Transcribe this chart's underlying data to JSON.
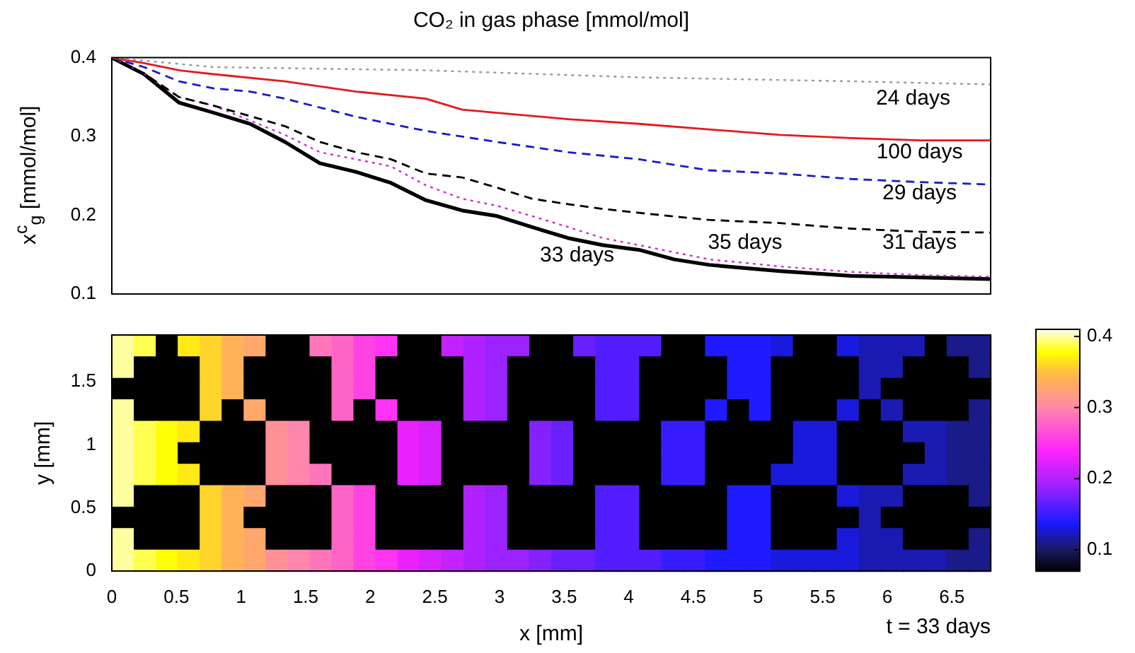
{
  "chart_data": [
    {
      "type": "line",
      "title": "CO₂ in gas phase [mmol/mol]",
      "ylabel": "x$^{c}$$_{g}$ [mmol/mol]",
      "xlim": [
        0,
        6.8
      ],
      "xticks": [
        0,
        0.5,
        1,
        1.5,
        2,
        2.5,
        3,
        3.5,
        4,
        4.5,
        5,
        5.5,
        6,
        6.5
      ],
      "ylim": [
        0.1,
        0.4
      ],
      "yticks": [
        0.1,
        0.2,
        0.3,
        0.4
      ],
      "tick_labels": "y",
      "grid": false,
      "legend": false,
      "series": [
        {
          "name": "24 days",
          "color": "#999999",
          "line_style": "dotted",
          "x": [
            0,
            0.79,
            2.43,
            4.08,
            5.72,
            6.8
          ],
          "values": [
            0.4,
            0.388,
            0.384,
            0.375,
            0.37,
            0.366
          ]
        },
        {
          "name": "100 days",
          "color": "#e41a1c",
          "line_style": "solid",
          "x": [
            0,
            0.25,
            0.52,
            0.79,
            1.34,
            1.89,
            2.43,
            2.71,
            2.98,
            3.53,
            4.08,
            4.62,
            5.17,
            5.72,
            6.26,
            6.8
          ],
          "values": [
            0.4,
            0.393,
            0.384,
            0.379,
            0.37,
            0.357,
            0.348,
            0.334,
            0.33,
            0.322,
            0.316,
            0.309,
            0.302,
            0.298,
            0.295,
            0.295
          ]
        },
        {
          "name": "29 days",
          "color": "#1a1acc",
          "line_style": "dashed",
          "x": [
            0,
            0.25,
            0.52,
            0.79,
            1.07,
            1.34,
            1.89,
            2.43,
            2.98,
            3.53,
            4.08,
            4.62,
            5.17,
            5.72,
            6.26,
            6.8
          ],
          "values": [
            0.4,
            0.388,
            0.37,
            0.361,
            0.357,
            0.348,
            0.325,
            0.307,
            0.293,
            0.28,
            0.271,
            0.257,
            0.253,
            0.246,
            0.242,
            0.239
          ]
        },
        {
          "name": "31 days",
          "color": "#000000",
          "line_style": "dashed",
          "x": [
            0,
            0.25,
            0.52,
            0.79,
            1.34,
            1.61,
            1.89,
            2.16,
            2.43,
            2.71,
            2.98,
            3.25,
            3.53,
            3.8,
            4.08,
            4.62,
            5.17,
            5.72,
            6.26,
            6.8
          ],
          "values": [
            0.4,
            0.38,
            0.35,
            0.339,
            0.313,
            0.293,
            0.28,
            0.271,
            0.253,
            0.248,
            0.235,
            0.221,
            0.214,
            0.208,
            0.203,
            0.194,
            0.19,
            0.183,
            0.179,
            0.178
          ]
        },
        {
          "name": "35 days",
          "color": "#cc33cc",
          "line_style": "dotted",
          "x": [
            0,
            0.25,
            0.52,
            0.79,
            1.34,
            1.61,
            1.89,
            2.16,
            2.43,
            2.71,
            2.98,
            3.25,
            3.53,
            3.8,
            4.08,
            4.35,
            4.62,
            5.17,
            5.72,
            6.26,
            6.8
          ],
          "values": [
            0.4,
            0.38,
            0.35,
            0.339,
            0.302,
            0.28,
            0.271,
            0.262,
            0.238,
            0.221,
            0.212,
            0.199,
            0.185,
            0.171,
            0.162,
            0.153,
            0.144,
            0.135,
            0.128,
            0.124,
            0.122
          ]
        },
        {
          "name": "33 days",
          "color": "#000000",
          "line_style": "solid",
          "x": [
            0,
            0.25,
            0.52,
            0.79,
            1.07,
            1.34,
            1.61,
            1.89,
            2.16,
            2.43,
            2.71,
            2.98,
            3.25,
            3.53,
            3.8,
            4.08,
            4.35,
            4.62,
            5.17,
            5.72,
            6.26,
            6.8
          ],
          "values": [
            0.4,
            0.379,
            0.343,
            0.33,
            0.316,
            0.293,
            0.266,
            0.255,
            0.241,
            0.219,
            0.206,
            0.199,
            0.185,
            0.171,
            0.162,
            0.156,
            0.144,
            0.137,
            0.129,
            0.123,
            0.121,
            0.119
          ]
        }
      ]
    },
    {
      "type": "heatmap",
      "xlabel": "x [mm]",
      "ylabel": "y [mm]",
      "annotations": [
        "t = 33 days"
      ],
      "xlim": [
        0,
        6.8
      ],
      "xticks": [
        0,
        0.5,
        1,
        1.5,
        2,
        2.5,
        3,
        3.5,
        4,
        4.5,
        5,
        5.5,
        6,
        6.5
      ],
      "ylim": [
        0,
        1.87
      ],
      "yticks": [
        0,
        0.5,
        1,
        1.5
      ],
      "clim": [
        0.07,
        0.41
      ],
      "cticks": [
        0.1,
        0.2,
        0.3,
        0.4
      ],
      "x": [
        0.085,
        0.255,
        0.425,
        0.595,
        0.765,
        0.935,
        1.105,
        1.275,
        1.445,
        1.615,
        1.785,
        1.955,
        2.125,
        2.295,
        2.465,
        2.635,
        2.805,
        2.975,
        3.145,
        3.315,
        3.485,
        3.655,
        3.825,
        3.995,
        4.165,
        4.335,
        4.505,
        4.675,
        4.845,
        5.015,
        5.185,
        5.355,
        5.525,
        5.695,
        5.865,
        6.035,
        6.205,
        6.375,
        6.545,
        6.715
      ],
      "y": [
        1.785,
        1.615,
        1.445,
        1.275,
        1.105,
        0.935,
        0.765,
        0.595,
        0.425,
        0.255,
        0.085
      ],
      "cells": [
        [
          0.4,
          0.39,
          null,
          0.37,
          0.36,
          0.34,
          0.33,
          null,
          null,
          0.29,
          0.28,
          0.26,
          0.25,
          null,
          null,
          0.21,
          0.2,
          0.19,
          0.19,
          null,
          null,
          0.17,
          0.16,
          0.16,
          0.16,
          null,
          null,
          0.14,
          0.14,
          0.14,
          0.13,
          null,
          null,
          0.13,
          0.12,
          0.12,
          0.12,
          null,
          0.11,
          0.11
        ],
        [
          0.4,
          null,
          null,
          null,
          0.36,
          0.34,
          null,
          null,
          null,
          null,
          0.28,
          0.26,
          null,
          null,
          null,
          null,
          0.2,
          0.19,
          null,
          null,
          null,
          null,
          0.16,
          0.16,
          null,
          null,
          null,
          null,
          0.14,
          0.14,
          null,
          null,
          null,
          null,
          0.12,
          0.12,
          null,
          null,
          null,
          0.11
        ],
        [
          null,
          null,
          null,
          null,
          0.36,
          0.34,
          null,
          null,
          null,
          null,
          0.28,
          0.26,
          null,
          null,
          null,
          null,
          0.2,
          0.19,
          null,
          null,
          null,
          null,
          0.16,
          0.16,
          null,
          null,
          null,
          null,
          0.14,
          0.14,
          null,
          null,
          null,
          null,
          0.12,
          null,
          null,
          null,
          null,
          null
        ],
        [
          0.4,
          null,
          null,
          null,
          0.36,
          null,
          0.33,
          null,
          null,
          null,
          0.28,
          null,
          0.25,
          null,
          null,
          null,
          0.2,
          0.19,
          null,
          null,
          null,
          null,
          0.16,
          0.16,
          null,
          null,
          null,
          0.14,
          null,
          0.14,
          null,
          null,
          null,
          0.13,
          null,
          0.12,
          null,
          null,
          null,
          0.11
        ],
        [
          0.4,
          0.39,
          0.38,
          0.37,
          null,
          null,
          null,
          0.31,
          0.3,
          null,
          null,
          null,
          null,
          0.23,
          0.22,
          null,
          null,
          null,
          null,
          0.18,
          0.17,
          null,
          null,
          null,
          null,
          0.15,
          0.15,
          null,
          null,
          null,
          null,
          0.13,
          0.13,
          null,
          null,
          null,
          0.12,
          0.12,
          0.11,
          0.11
        ],
        [
          0.4,
          0.39,
          0.38,
          null,
          null,
          null,
          null,
          0.31,
          0.3,
          null,
          null,
          null,
          null,
          0.23,
          0.22,
          null,
          null,
          null,
          null,
          0.18,
          0.17,
          null,
          null,
          null,
          null,
          0.15,
          0.15,
          null,
          null,
          null,
          null,
          0.13,
          0.13,
          null,
          null,
          null,
          null,
          0.12,
          0.11,
          0.11
        ],
        [
          0.4,
          0.39,
          0.38,
          0.37,
          null,
          null,
          null,
          0.31,
          0.3,
          0.29,
          null,
          null,
          null,
          0.23,
          0.22,
          null,
          null,
          null,
          null,
          0.18,
          0.17,
          null,
          null,
          null,
          null,
          0.15,
          0.15,
          null,
          null,
          null,
          0.13,
          0.13,
          0.13,
          null,
          null,
          null,
          0.12,
          0.12,
          0.11,
          0.11
        ],
        [
          0.4,
          null,
          null,
          null,
          0.36,
          0.34,
          0.33,
          null,
          null,
          null,
          0.28,
          0.26,
          null,
          null,
          null,
          null,
          0.2,
          0.19,
          null,
          null,
          null,
          null,
          0.16,
          0.16,
          null,
          null,
          null,
          null,
          0.14,
          0.14,
          null,
          null,
          null,
          0.13,
          0.12,
          0.12,
          null,
          null,
          null,
          0.11
        ],
        [
          null,
          null,
          null,
          null,
          0.36,
          0.34,
          null,
          null,
          null,
          null,
          0.28,
          0.26,
          null,
          null,
          null,
          null,
          0.2,
          0.19,
          null,
          null,
          null,
          null,
          0.16,
          0.16,
          null,
          null,
          null,
          null,
          0.14,
          0.14,
          null,
          null,
          null,
          null,
          0.12,
          null,
          null,
          null,
          null,
          null
        ],
        [
          0.4,
          null,
          null,
          null,
          0.36,
          0.34,
          0.33,
          null,
          null,
          null,
          0.28,
          0.26,
          null,
          null,
          null,
          null,
          0.2,
          0.19,
          null,
          null,
          null,
          null,
          0.16,
          0.16,
          null,
          null,
          null,
          null,
          0.14,
          0.14,
          null,
          null,
          null,
          0.13,
          0.12,
          0.12,
          null,
          null,
          null,
          0.11
        ],
        [
          0.4,
          0.39,
          0.38,
          0.37,
          0.36,
          0.34,
          0.33,
          0.31,
          0.3,
          0.29,
          0.28,
          0.26,
          0.25,
          0.23,
          0.22,
          0.21,
          0.2,
          0.19,
          0.19,
          0.18,
          0.17,
          0.17,
          0.16,
          0.16,
          0.16,
          0.15,
          0.15,
          0.14,
          0.14,
          0.14,
          0.13,
          0.13,
          0.13,
          0.13,
          0.12,
          0.12,
          0.12,
          0.12,
          0.11,
          0.11
        ]
      ]
    }
  ]
}
